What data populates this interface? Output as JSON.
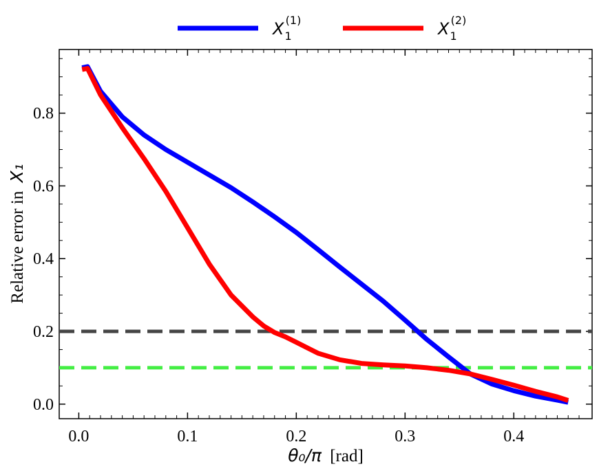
{
  "chart_data": {
    "type": "line",
    "xlabel": {
      "math": "θ₀/π",
      "unit": "[rad]"
    },
    "ylabel": {
      "prefix": "Relative error in",
      "math": "X₁"
    },
    "xlim": [
      -0.018,
      0.472
    ],
    "ylim": [
      -0.04,
      0.975
    ],
    "xticks": [
      0.0,
      0.1,
      0.2,
      0.3,
      0.4
    ],
    "yticks": [
      0.0,
      0.2,
      0.4,
      0.6,
      0.8
    ],
    "xtick_labels": [
      "0.0",
      "0.1",
      "0.2",
      "0.3",
      "0.4"
    ],
    "ytick_labels": [
      "0.0",
      "0.2",
      "0.4",
      "0.6",
      "0.8"
    ],
    "legend_position": "top-center-outside",
    "series": [
      {
        "name": "X_1^(1)",
        "legend_base": "X",
        "legend_sub": "1",
        "legend_sup": "(1)",
        "color": "#0000ff",
        "x": [
          0.003,
          0.008,
          0.02,
          0.04,
          0.06,
          0.08,
          0.1,
          0.12,
          0.14,
          0.16,
          0.18,
          0.2,
          0.22,
          0.24,
          0.26,
          0.28,
          0.3,
          0.32,
          0.34,
          0.36,
          0.38,
          0.4,
          0.42,
          0.44,
          0.45
        ],
        "y": [
          0.925,
          0.928,
          0.86,
          0.79,
          0.74,
          0.7,
          0.665,
          0.63,
          0.595,
          0.556,
          0.515,
          0.472,
          0.425,
          0.377,
          0.33,
          0.283,
          0.231,
          0.178,
          0.13,
          0.083,
          0.055,
          0.037,
          0.022,
          0.011,
          0.005
        ]
      },
      {
        "name": "X_1^(2)",
        "legend_base": "X",
        "legend_sub": "1",
        "legend_sup": "(2)",
        "color": "#ff0000",
        "x": [
          0.003,
          0.008,
          0.02,
          0.04,
          0.06,
          0.08,
          0.1,
          0.12,
          0.14,
          0.16,
          0.17,
          0.18,
          0.19,
          0.2,
          0.22,
          0.24,
          0.26,
          0.28,
          0.3,
          0.32,
          0.34,
          0.36,
          0.38,
          0.4,
          0.42,
          0.44,
          0.45
        ],
        "y": [
          0.92,
          0.923,
          0.85,
          0.76,
          0.675,
          0.585,
          0.485,
          0.385,
          0.3,
          0.24,
          0.215,
          0.197,
          0.185,
          0.17,
          0.14,
          0.122,
          0.112,
          0.108,
          0.105,
          0.1,
          0.093,
          0.083,
          0.068,
          0.052,
          0.035,
          0.02,
          0.01
        ]
      }
    ],
    "reference_lines": [
      {
        "y": 0.2,
        "color": "#444444",
        "style": "dashed"
      },
      {
        "y": 0.1,
        "color": "#44ee44",
        "style": "dashed"
      }
    ]
  }
}
